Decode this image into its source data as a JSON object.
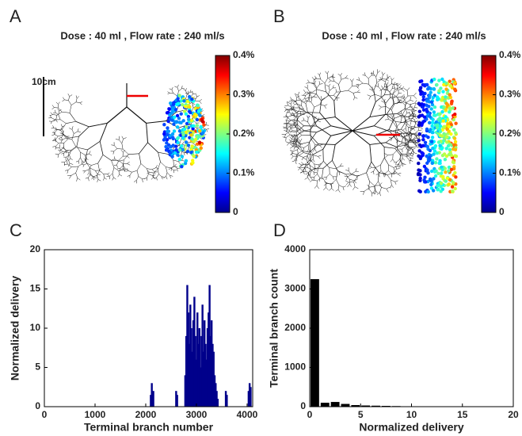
{
  "chart_data": [
    {
      "type": "tree",
      "panel": "A",
      "title": "Dose : 40 ml , Flow rate : 240 ml/s",
      "scale_bar": "10cm",
      "colorbar": {
        "lim": [
          0,
          0.4
        ],
        "ticks": [
          0,
          {
            "value": 0.1,
            "label": "0.1%"
          },
          {
            "value": 0.2,
            "label": "0.2%"
          },
          {
            "value": 0.3,
            "label": "0.3%"
          },
          {
            "value": 0.4,
            "label": "0.4%"
          }
        ]
      }
    },
    {
      "type": "tree",
      "panel": "B",
      "title": "Dose : 40 ml , Flow rate : 240 ml/s",
      "colorbar": {
        "lim": [
          0,
          0.4
        ],
        "ticks": [
          0,
          {
            "value": 0.1,
            "label": "0.1%"
          },
          {
            "value": 0.2,
            "label": "0.2%"
          },
          {
            "value": 0.3,
            "label": "0.3%"
          },
          {
            "value": 0.4,
            "label": "0.4%"
          }
        ]
      }
    },
    {
      "type": "bar",
      "panel": "C",
      "xlabel": "Terminal branch number",
      "ylabel": "Normalized delivery",
      "color": "#00008b",
      "x": [
        2100,
        2120,
        2150,
        2600,
        2620,
        2780,
        2800,
        2820,
        2840,
        2860,
        2880,
        2900,
        2920,
        2940,
        2960,
        2980,
        3000,
        3020,
        3040,
        3060,
        3080,
        3100,
        3120,
        3140,
        3160,
        3180,
        3200,
        3220,
        3240,
        3260,
        3280,
        3300,
        3320,
        3340,
        3360,
        3380,
        3400,
        3420,
        3580,
        3600,
        4030,
        4050,
        4070
      ],
      "values": [
        1.5,
        3,
        2,
        2,
        1.5,
        4,
        9,
        15.5,
        12,
        8,
        13,
        10,
        7,
        11,
        14,
        9,
        6,
        12,
        8,
        10,
        5,
        9,
        13,
        7,
        11,
        8,
        6,
        10,
        12,
        15.5,
        9,
        11,
        8,
        7,
        4,
        3,
        2,
        1,
        2,
        1.5,
        2,
        3,
        2.5
      ],
      "xlim": [
        0,
        4110
      ],
      "xticks": [
        0,
        1000,
        2000,
        3000,
        4000
      ],
      "ylim": [
        0,
        20
      ],
      "yticks": [
        0,
        5,
        10,
        15,
        20
      ]
    },
    {
      "type": "histogram",
      "panel": "D",
      "xlabel": "Normalized delivery",
      "ylabel": "Terminal branch count",
      "color": "#000000",
      "bins": [
        0,
        1,
        2,
        3,
        4,
        5,
        6,
        7,
        8,
        9,
        10,
        11,
        12
      ],
      "values": [
        3250,
        100,
        120,
        70,
        40,
        30,
        25,
        20,
        15,
        10,
        8,
        3
      ],
      "xlim": [
        0,
        20
      ],
      "xticks": [
        0,
        5,
        10,
        15,
        20
      ],
      "ylim": [
        0,
        4000
      ],
      "yticks": [
        0,
        1000,
        2000,
        3000,
        4000
      ]
    }
  ]
}
